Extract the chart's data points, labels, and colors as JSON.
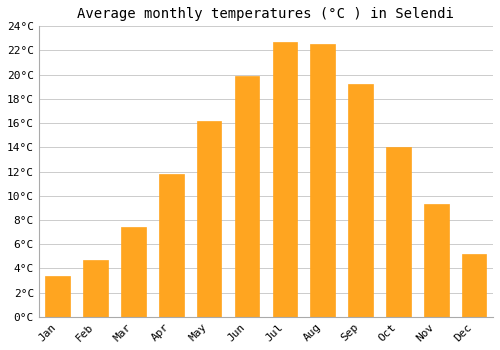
{
  "title": "Average monthly temperatures (°C ) in Selendi",
  "months": [
    "Jan",
    "Feb",
    "Mar",
    "Apr",
    "May",
    "Jun",
    "Jul",
    "Aug",
    "Sep",
    "Oct",
    "Nov",
    "Dec"
  ],
  "temperatures": [
    3.4,
    4.7,
    7.4,
    11.8,
    16.2,
    19.9,
    22.7,
    22.5,
    19.2,
    14.0,
    9.3,
    5.2
  ],
  "bar_color": "#FFA520",
  "bar_edge_color": "#FFA520",
  "background_color": "#ffffff",
  "grid_color": "#cccccc",
  "ylim": [
    0,
    24
  ],
  "yticks": [
    0,
    2,
    4,
    6,
    8,
    10,
    12,
    14,
    16,
    18,
    20,
    22,
    24
  ],
  "title_fontsize": 10,
  "tick_fontsize": 8,
  "font_family": "monospace"
}
